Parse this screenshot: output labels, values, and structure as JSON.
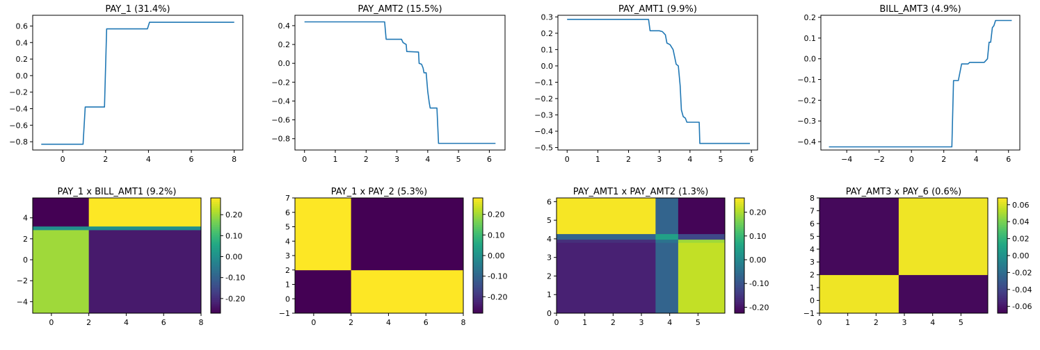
{
  "chart_data": [
    {
      "type": "line",
      "title": "PAY_1 (31.4%)",
      "xlim": [
        -1.4,
        8.4
      ],
      "ylim": [
        -0.9,
        0.73
      ],
      "xticks": [
        0,
        2,
        4,
        6,
        8
      ],
      "xtick_labels": [
        "0",
        "2",
        "4",
        "6",
        "8"
      ],
      "yticks": [
        -0.8,
        -0.6,
        -0.4,
        -0.2,
        0.0,
        0.2,
        0.4,
        0.6
      ],
      "ytick_labels": [
        "−0.8",
        "−0.6",
        "−0.4",
        "−0.2",
        "0.0",
        "0.2",
        "0.4",
        "0.6"
      ],
      "color": "#1f77b4",
      "x": [
        -1,
        0.95,
        1.05,
        1.95,
        2.05,
        3.95,
        4.05,
        8
      ],
      "y": [
        -0.83,
        -0.83,
        -0.38,
        -0.38,
        0.565,
        0.565,
        0.645,
        0.645
      ]
    },
    {
      "type": "line",
      "title": "PAY_AMT2 (15.5%)",
      "xlim": [
        -0.31,
        6.51
      ],
      "ylim": [
        -0.92,
        0.51
      ],
      "xticks": [
        0,
        1,
        2,
        3,
        4,
        5,
        6
      ],
      "xtick_labels": [
        "0",
        "1",
        "2",
        "3",
        "4",
        "5",
        "6"
      ],
      "yticks": [
        -0.8,
        -0.6,
        -0.4,
        -0.2,
        0.0,
        0.2,
        0.4
      ],
      "ytick_labels": [
        "−0.8",
        "−0.6",
        "−0.4",
        "−0.2",
        "0.0",
        "0.2",
        "0.4"
      ],
      "color": "#1f77b4",
      "x": [
        0,
        2.6,
        2.65,
        3.15,
        3.2,
        3.3,
        3.32,
        3.7,
        3.72,
        3.8,
        3.85,
        3.88,
        3.95,
        4.0,
        4.05,
        4.08,
        4.15,
        4.3,
        4.35,
        6.2
      ],
      "y": [
        0.44,
        0.44,
        0.255,
        0.255,
        0.22,
        0.2,
        0.125,
        0.12,
        0.0,
        -0.01,
        -0.05,
        -0.1,
        -0.1,
        -0.3,
        -0.42,
        -0.475,
        -0.475,
        -0.475,
        -0.85,
        -0.85
      ]
    },
    {
      "type": "line",
      "title": "PAY_AMT1 (9.9%)",
      "xlim": [
        -0.3,
        6.2
      ],
      "ylim": [
        -0.515,
        0.31
      ],
      "xticks": [
        0,
        1,
        2,
        3,
        4,
        5,
        6
      ],
      "xtick_labels": [
        "0",
        "1",
        "2",
        "3",
        "4",
        "5",
        "6"
      ],
      "yticks": [
        -0.5,
        -0.4,
        -0.3,
        -0.2,
        -0.1,
        0.0,
        0.1,
        0.2,
        0.3
      ],
      "ytick_labels": [
        "−0.5",
        "−0.4",
        "−0.3",
        "−0.2",
        "−0.1",
        "0.0",
        "0.1",
        "0.2",
        "0.3"
      ],
      "color": "#1f77b4",
      "x": [
        0,
        2.65,
        2.7,
        3.0,
        3.1,
        3.2,
        3.25,
        3.35,
        3.45,
        3.55,
        3.62,
        3.68,
        3.72,
        3.78,
        3.85,
        3.9,
        4.1,
        4.3,
        4.32,
        5.95
      ],
      "y": [
        0.285,
        0.285,
        0.215,
        0.215,
        0.21,
        0.19,
        0.14,
        0.13,
        0.1,
        0.01,
        0.0,
        -0.12,
        -0.27,
        -0.31,
        -0.32,
        -0.345,
        -0.345,
        -0.345,
        -0.475,
        -0.475
      ]
    },
    {
      "type": "line",
      "title": "BILL_AMT3 (4.9%)",
      "xlim": [
        -5.6,
        6.7
      ],
      "ylim": [
        -0.44,
        0.21
      ],
      "xticks": [
        -4,
        -2,
        0,
        2,
        4,
        6
      ],
      "xtick_labels": [
        "−4",
        "−2",
        "0",
        "2",
        "4",
        "6"
      ],
      "yticks": [
        -0.4,
        -0.3,
        -0.2,
        -0.1,
        0.0,
        0.1,
        0.2
      ],
      "ytick_labels": [
        "−0.4",
        "−0.3",
        "−0.2",
        "−0.1",
        "0.0",
        "0.1",
        "0.2"
      ],
      "color": "#1f77b4",
      "x": [
        -5.1,
        2.5,
        2.6,
        2.9,
        3.1,
        3.5,
        3.6,
        4.5,
        4.7,
        4.8,
        4.9,
        5.0,
        5.1,
        5.2,
        5.3,
        6.2
      ],
      "y": [
        -0.425,
        -0.425,
        -0.105,
        -0.105,
        -0.025,
        -0.025,
        -0.017,
        -0.017,
        0.0,
        0.08,
        0.08,
        0.15,
        0.16,
        0.185,
        0.185,
        0.185
      ]
    },
    {
      "type": "heatmap",
      "title": "PAY_1 x BILL_AMT1 (9.2%)",
      "xlim": [
        -1,
        8
      ],
      "ylim": [
        -5.1,
        5.9
      ],
      "xticks": [
        0,
        2,
        4,
        6,
        8
      ],
      "xtick_labels": [
        "0",
        "2",
        "4",
        "6",
        "8"
      ],
      "yticks": [
        -4,
        -2,
        0,
        2,
        4
      ],
      "ytick_labels": [
        "−4",
        "−2",
        "0",
        "2",
        "4"
      ],
      "x_edges": [
        -1,
        2,
        8
      ],
      "y_edges": [
        -5.1,
        2.85,
        3.2,
        5.9
      ],
      "z": [
        [
          0.2,
          -0.23
        ],
        [
          0.0,
          0.0
        ],
        [
          -0.27,
          0.28
        ]
      ],
      "vmin": -0.27,
      "vmax": 0.28,
      "colorbar_ticks": [
        -0.2,
        -0.1,
        0.0,
        0.1,
        0.2
      ],
      "colorbar_labels": [
        "-0.20",
        "-0.10",
        "0.00",
        "0.10",
        "0.20"
      ]
    },
    {
      "type": "heatmap",
      "title": "PAY_1 x PAY_2 (5.3%)",
      "xlim": [
        -1,
        8
      ],
      "ylim": [
        -1,
        7
      ],
      "xticks": [
        0,
        2,
        4,
        6,
        8
      ],
      "xtick_labels": [
        "0",
        "2",
        "4",
        "6",
        "8"
      ],
      "yticks": [
        -1,
        0,
        1,
        2,
        3,
        4,
        5,
        6,
        7
      ],
      "ytick_labels": [
        "−1",
        "0",
        "1",
        "2",
        "3",
        "4",
        "5",
        "6",
        "7"
      ],
      "x_edges": [
        -1,
        2,
        8
      ],
      "y_edges": [
        -1,
        2,
        7
      ],
      "z": [
        [
          -0.28,
          0.28
        ],
        [
          0.28,
          -0.28
        ]
      ],
      "vmin": -0.28,
      "vmax": 0.28,
      "colorbar_ticks": [
        -0.2,
        -0.1,
        0.0,
        0.1,
        0.2
      ],
      "colorbar_labels": [
        "-0.20",
        "-0.10",
        "0.00",
        "0.10",
        "0.20"
      ]
    },
    {
      "type": "heatmap",
      "title": "PAY_AMT1 x PAY_AMT2 (1.3%)",
      "xlim": [
        0,
        5.95
      ],
      "ylim": [
        0,
        6.2
      ],
      "xticks": [
        0,
        1,
        2,
        3,
        4,
        5
      ],
      "xtick_labels": [
        "0",
        "1",
        "2",
        "3",
        "4",
        "5"
      ],
      "yticks": [
        0,
        1,
        2,
        3,
        4,
        5,
        6
      ],
      "ytick_labels": [
        "0",
        "1",
        "2",
        "3",
        "4",
        "5",
        "6"
      ],
      "x_edges": [
        0,
        3.5,
        4.3,
        5.95
      ],
      "y_edges": [
        0,
        3.8,
        3.97,
        4.27,
        6.2
      ],
      "z": [
        [
          -0.18,
          -0.07,
          0.215
        ],
        [
          -0.16,
          -0.04,
          0.19
        ],
        [
          -0.07,
          0.05,
          -0.12
        ],
        [
          0.255,
          -0.07,
          -0.22
        ]
      ],
      "vmin": -0.225,
      "vmax": 0.26,
      "colorbar_ticks": [
        -0.2,
        -0.1,
        0.0,
        0.1,
        0.2
      ],
      "colorbar_labels": [
        "-0.20",
        "-0.10",
        "0.00",
        "0.10",
        "0.20"
      ]
    },
    {
      "type": "heatmap",
      "title": "PAY_AMT3 x PAY_6 (0.6%)",
      "xlim": [
        0,
        5.95
      ],
      "ylim": [
        -1,
        8
      ],
      "xticks": [
        0,
        1,
        2,
        3,
        4,
        5
      ],
      "xtick_labels": [
        "0",
        "1",
        "2",
        "3",
        "4",
        "5"
      ],
      "yticks": [
        -1,
        0,
        1,
        2,
        3,
        4,
        5,
        6,
        7,
        8
      ],
      "ytick_labels": [
        "−1",
        "0",
        "1",
        "2",
        "3",
        "4",
        "5",
        "6",
        "7",
        "8"
      ],
      "x_edges": [
        0,
        2.8,
        5.95
      ],
      "y_edges": [
        -1,
        2,
        8
      ],
      "z": [
        [
          0.065,
          -0.065
        ],
        [
          -0.065,
          0.065
        ]
      ],
      "vmin": -0.068,
      "vmax": 0.068,
      "colorbar_ticks": [
        -0.06,
        -0.04,
        -0.02,
        0.0,
        0.02,
        0.04,
        0.06
      ],
      "colorbar_labels": [
        "-0.06",
        "-0.04",
        "-0.02",
        "0.00",
        "0.02",
        "0.04",
        "0.06"
      ]
    }
  ]
}
